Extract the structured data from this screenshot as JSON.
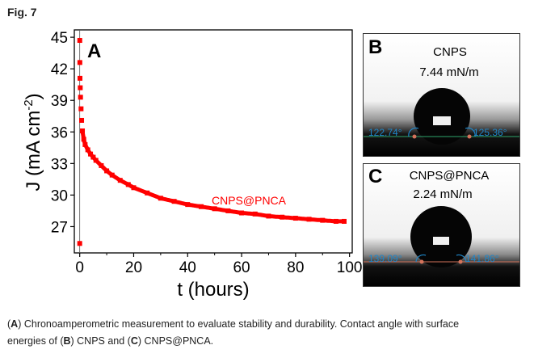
{
  "figure_label": "Fig. 7",
  "chart_data": [
    {
      "panel": "A",
      "type": "scatter",
      "title": "",
      "series": [
        {
          "name": "CNPS@PNCA",
          "color": "#ff0000",
          "x": [
            0,
            0.02,
            0.05,
            0.1,
            0.2,
            0.3,
            0.5,
            0.7,
            1,
            1.5,
            2,
            3,
            4,
            5,
            6,
            8,
            10,
            12,
            15,
            18,
            20,
            25,
            30,
            35,
            40,
            45,
            50,
            55,
            60,
            65,
            70,
            75,
            80,
            85,
            90,
            95,
            98
          ],
          "y": [
            25.4,
            44.7,
            42.6,
            41.1,
            40.2,
            39.3,
            38.2,
            37.1,
            36.1,
            35.3,
            34.8,
            34.3,
            33.9,
            33.6,
            33.3,
            32.8,
            32.3,
            31.9,
            31.4,
            31.0,
            30.7,
            30.2,
            29.7,
            29.4,
            29.1,
            28.9,
            28.7,
            28.5,
            28.3,
            28.2,
            28.0,
            27.9,
            27.8,
            27.7,
            27.6,
            27.5,
            27.5
          ]
        }
      ],
      "xlabel": "t (hours)",
      "ylabel": "J (mA cm",
      "ylabel_superscript": "-2",
      "ylabel_close": ")",
      "xlim": [
        -2,
        101
      ],
      "ylim": [
        24.5,
        45.7
      ],
      "x_ticks": [
        0,
        20,
        40,
        60,
        80,
        100
      ],
      "y_ticks": [
        27,
        30,
        33,
        36,
        39,
        42,
        45
      ],
      "annotation": "CNPS@PNCA",
      "grid": false
    }
  ],
  "panels": {
    "a_label": "A",
    "b": {
      "label": "B",
      "material": "CNPS",
      "surface_energy": "7.44 mN/m",
      "angle_left": "122.74°",
      "angle_right": "125.36°"
    },
    "c": {
      "label": "C",
      "material": "CNPS@PNCA",
      "surface_energy": "2.24 mN/m",
      "angle_left": "139.09°",
      "angle_right": "141.86°"
    }
  },
  "caption": {
    "line1_a": "(",
    "line1_a_bold": "A",
    "line1_b": ") Chronoamperometric measurement to evaluate stability and durability. Contact angle with surface",
    "line2_a": "energies of (",
    "line2_b_bold": "B",
    "line2_c": ") CNPS and (",
    "line2_c_bold": "C",
    "line2_d": ") CNPS@PNCA."
  },
  "colors": {
    "series": "#ff0000",
    "angle_text": "#1f86c8",
    "baseline": "#2ea56a"
  }
}
